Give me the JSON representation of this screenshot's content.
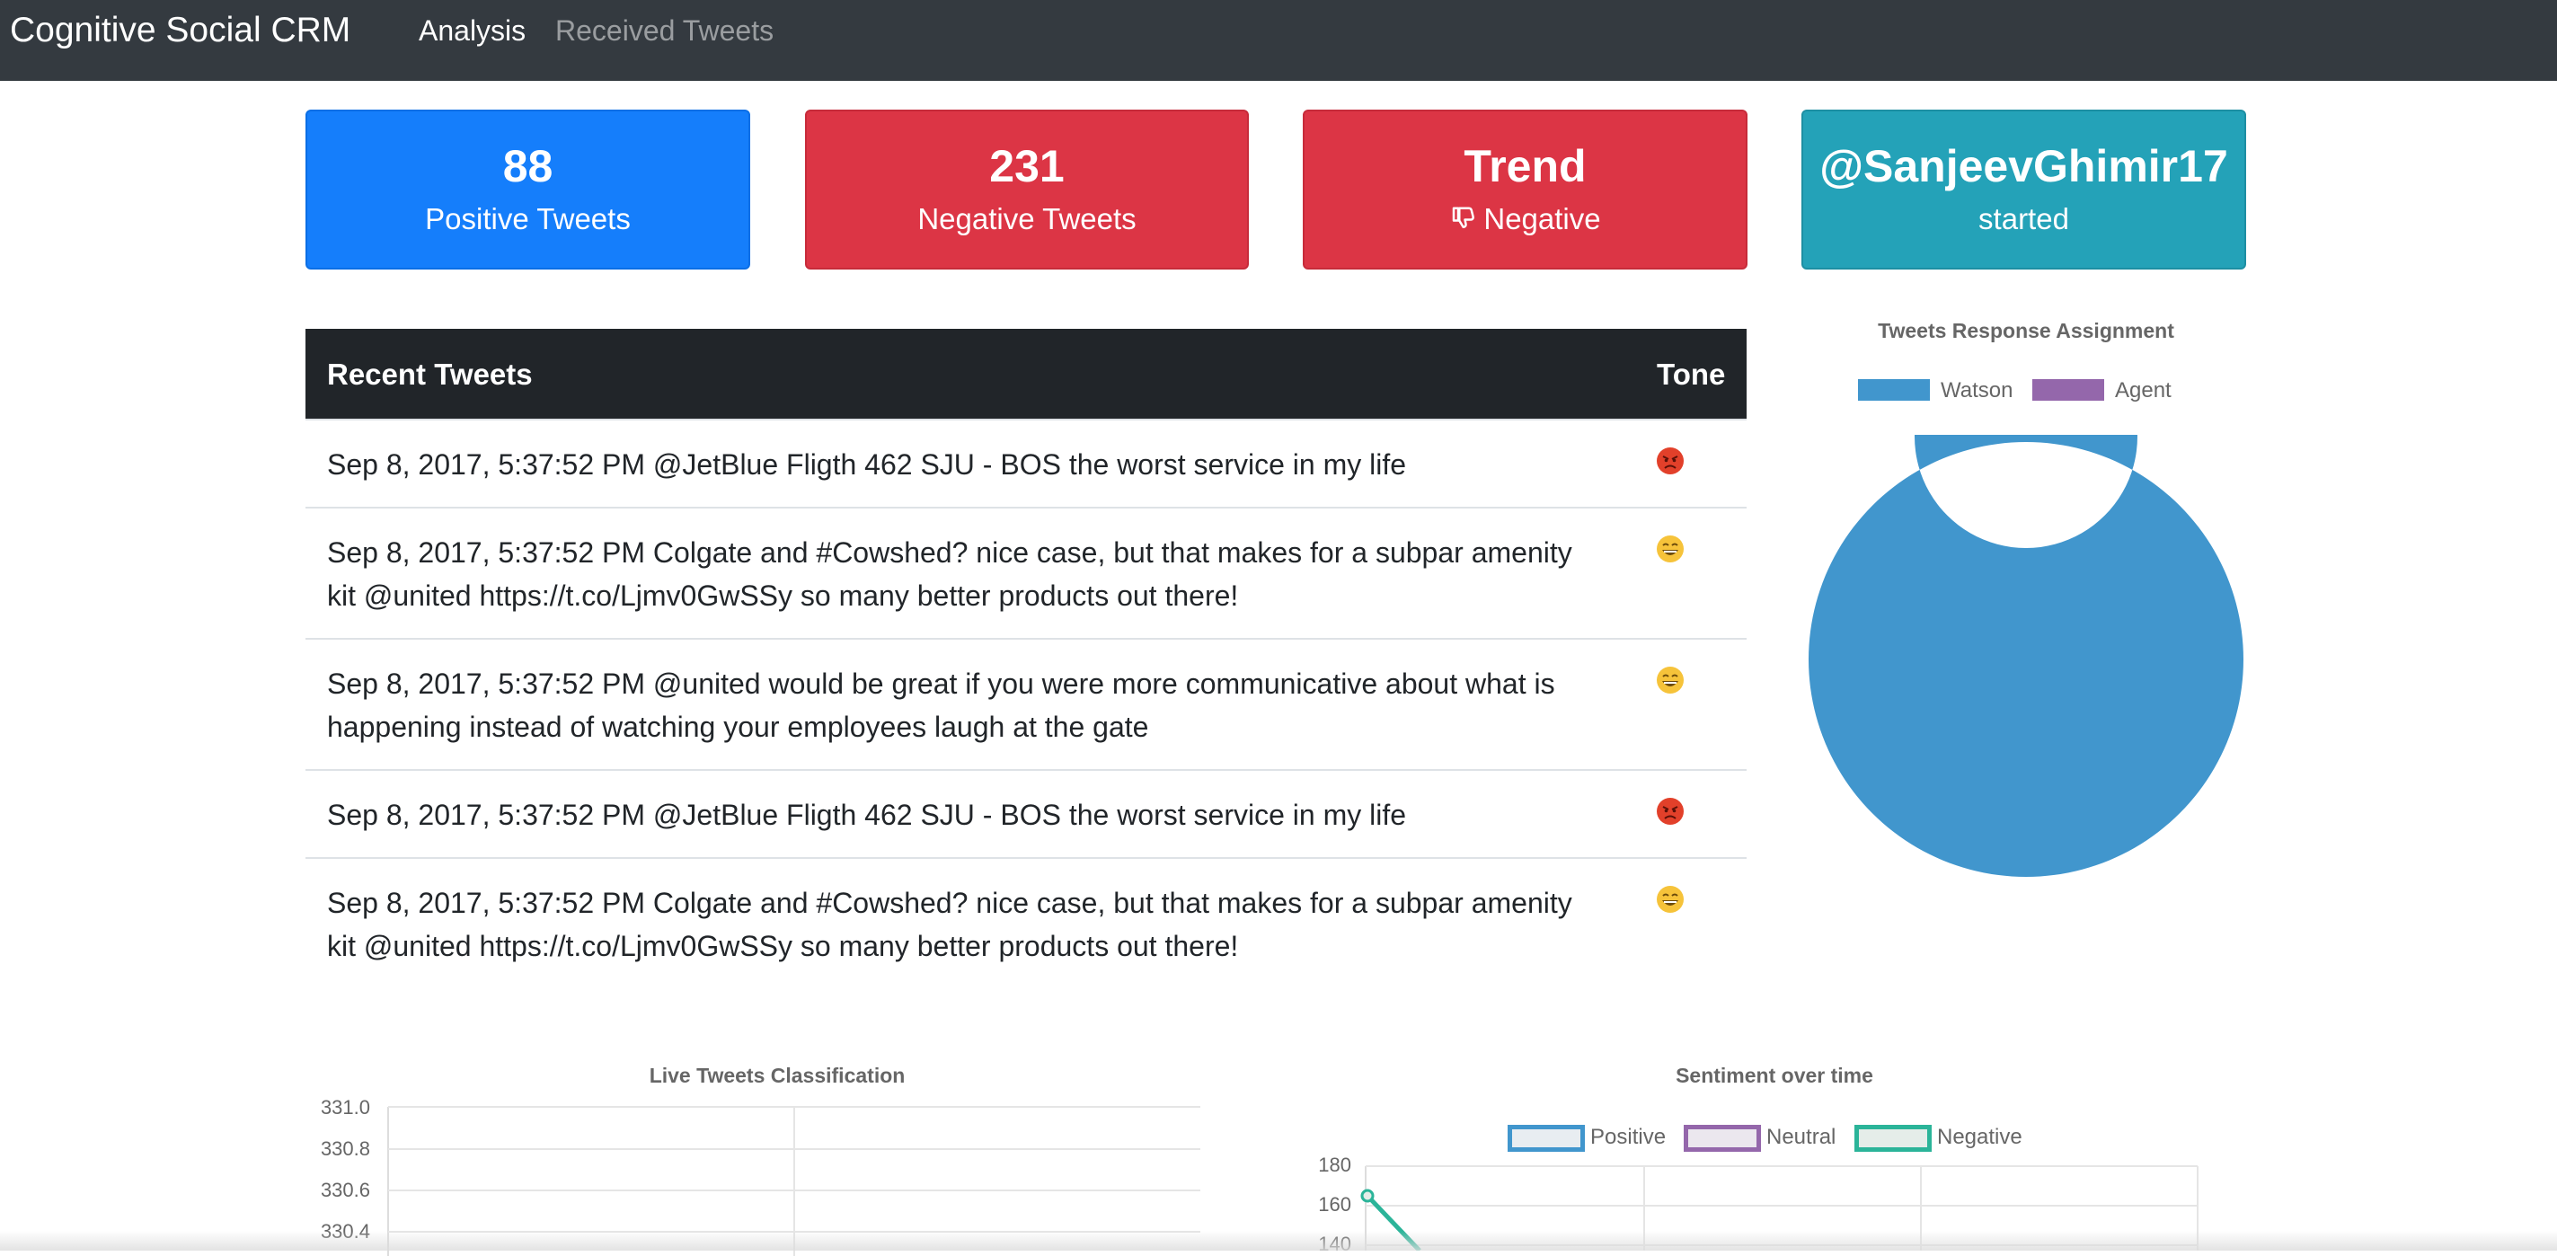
{
  "navbar": {
    "brand": "Cognitive Social CRM",
    "links": [
      {
        "label": "Analysis",
        "active": true
      },
      {
        "label": "Received Tweets",
        "active": false
      }
    ]
  },
  "stats": {
    "positive": {
      "value": "88",
      "label": "Positive Tweets",
      "color": "#157efb"
    },
    "negative": {
      "value": "231",
      "label": "Negative Tweets",
      "color": "#dc3545"
    },
    "trend": {
      "value": "Trend",
      "label": "Negative",
      "icon": "thumbs-down-icon",
      "color": "#dc3545"
    },
    "user": {
      "value": "@SanjeevGhimir17",
      "label": "started",
      "color": "#24a2b8"
    }
  },
  "table": {
    "headers": [
      "Recent Tweets",
      "Tone"
    ],
    "rows": [
      {
        "text": "Sep 8, 2017, 5:37:52 PM @JetBlue Fligth 462 SJU - BOS the worst service in my life",
        "tone": "angry-face-icon"
      },
      {
        "text": "Sep 8, 2017, 5:37:52 PM Colgate and #Cowshed? nice case, but that makes for a subpar amenity kit @united https://t.co/Ljmv0GwSSy so many better products out there!",
        "tone": "grinning-face-icon"
      },
      {
        "text": "Sep 8, 2017, 5:37:52 PM @united would be great if you were more communicative about what is happening instead of watching your employees laugh at the gate",
        "tone": "grinning-face-icon"
      },
      {
        "text": "Sep 8, 2017, 5:37:52 PM @JetBlue Fligth 462 SJU - BOS the worst service in my life",
        "tone": "angry-face-icon"
      },
      {
        "text": "Sep 8, 2017, 5:37:52 PM Colgate and #Cowshed? nice case, but that makes for a subpar amenity kit @united https://t.co/Ljmv0GwSSy so many better products out there!",
        "tone": "grinning-face-icon"
      }
    ]
  },
  "chart_data": [
    {
      "type": "pie",
      "title": "Tweets Response Assignment",
      "legend_position": "top",
      "labels": [
        "Watson",
        "Agent"
      ],
      "values": [
        1,
        0
      ],
      "colors": [
        "#4196cd",
        "#9467ab"
      ]
    },
    {
      "type": "bar",
      "title": "Live Tweets Classification",
      "ytick_labels": [
        "331.0",
        "330.8",
        "330.6",
        "330.4"
      ],
      "grid": true
    },
    {
      "type": "line",
      "title": "Sentiment over time",
      "legend_position": "top",
      "series": [
        {
          "name": "Positive",
          "color": "#4196cd"
        },
        {
          "name": "Neutral",
          "color": "#9467ab"
        },
        {
          "name": "Negative",
          "color": "#2bb499",
          "values": [
            165
          ]
        }
      ],
      "ytick_labels": [
        "180",
        "160",
        "140"
      ],
      "grid": true
    }
  ]
}
